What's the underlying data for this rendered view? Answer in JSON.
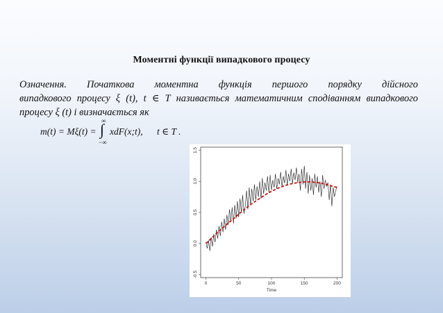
{
  "slide": {
    "title": "Моментні функції випадкового процесу",
    "definition_line1": [
      "Означення.",
      "Початкова",
      "моментна",
      "функція",
      "першого",
      "порядку",
      "дійсного"
    ],
    "definition_line2": "випадкового процесу  ξ (t),  t  ∈  T  називається математичним сподіванням випадкового",
    "definition_line3": "процесу  ξ (t)  і визначається як",
    "formula": {
      "lhs": "m(t) = Mξ(t) =",
      "upper_limit": "∞",
      "integral_sign": "∫",
      "lower_limit": "−∞",
      "integrand": "xdF(x;t),",
      "condition": "t ∈ T ."
    }
  },
  "chart_data": {
    "type": "line",
    "xlabel": "Time",
    "ylabel": "",
    "xlim": [
      -8,
      208
    ],
    "ylim": [
      -0.55,
      1.55
    ],
    "x_ticks": [
      "0",
      "50",
      "100",
      "150",
      "200"
    ],
    "y_ticks": [
      "-0.5",
      "0.0",
      "0.5",
      "1.0",
      "1.5"
    ],
    "grid": false,
    "colors": {
      "series": "#1a1a1a",
      "mean": "#cc1111"
    },
    "series": [
      {
        "style": "solid",
        "x": [
          0,
          2,
          4,
          6,
          8,
          10,
          12,
          14,
          16,
          18,
          20,
          22,
          24,
          26,
          28,
          30,
          32,
          34,
          36,
          38,
          40,
          42,
          44,
          46,
          48,
          50,
          52,
          54,
          56,
          58,
          60,
          62,
          64,
          66,
          68,
          70,
          72,
          74,
          76,
          78,
          80,
          82,
          84,
          86,
          88,
          90,
          92,
          94,
          96,
          98,
          100,
          102,
          104,
          106,
          108,
          110,
          112,
          114,
          116,
          118,
          120,
          122,
          124,
          126,
          128,
          130,
          132,
          134,
          136,
          138,
          140,
          142,
          144,
          146,
          148,
          150,
          152,
          154,
          156,
          158,
          160,
          162,
          164,
          166,
          168,
          170,
          172,
          174,
          176,
          178,
          180,
          182,
          184,
          186,
          188,
          190,
          192,
          194,
          196,
          198,
          200
        ],
        "values": [
          0.02,
          -0.08,
          0.05,
          -0.12,
          0.1,
          -0.05,
          0.15,
          0.02,
          0.22,
          0.08,
          0.28,
          0.12,
          0.35,
          0.18,
          0.4,
          0.22,
          0.46,
          0.3,
          0.55,
          0.35,
          0.58,
          0.32,
          0.62,
          0.4,
          0.68,
          0.42,
          0.72,
          0.5,
          0.78,
          0.48,
          0.6,
          0.85,
          0.55,
          0.9,
          0.62,
          0.88,
          0.68,
          0.95,
          0.7,
          0.92,
          0.75,
          1.0,
          0.72,
          1.05,
          0.8,
          0.98,
          0.85,
          1.08,
          0.82,
          1.1,
          0.86,
          1.02,
          0.9,
          1.12,
          0.88,
          1.05,
          0.95,
          1.15,
          0.92,
          1.08,
          0.97,
          1.18,
          0.94,
          1.12,
          1.0,
          1.2,
          0.96,
          1.14,
          1.02,
          1.22,
          0.98,
          1.12,
          0.85,
          1.2,
          0.95,
          1.25,
          0.88,
          1.15,
          0.8,
          1.1,
          0.85,
          1.05,
          0.78,
          1.12,
          0.9,
          1.08,
          0.82,
          1.0,
          0.75,
          1.1,
          0.88,
          1.02,
          0.92,
          0.98,
          0.7,
          0.95,
          0.6,
          0.9,
          0.75,
          0.85,
          0.92
        ]
      },
      {
        "style": "dashed",
        "x": [
          0,
          10,
          20,
          30,
          40,
          50,
          60,
          70,
          80,
          90,
          100,
          110,
          120,
          130,
          140,
          150,
          160,
          170,
          180,
          190,
          200
        ],
        "values": [
          0.0,
          0.1,
          0.2,
          0.29,
          0.38,
          0.47,
          0.56,
          0.64,
          0.71,
          0.78,
          0.84,
          0.89,
          0.93,
          0.96,
          0.98,
          0.99,
          0.99,
          0.98,
          0.96,
          0.93,
          0.9
        ]
      }
    ]
  }
}
